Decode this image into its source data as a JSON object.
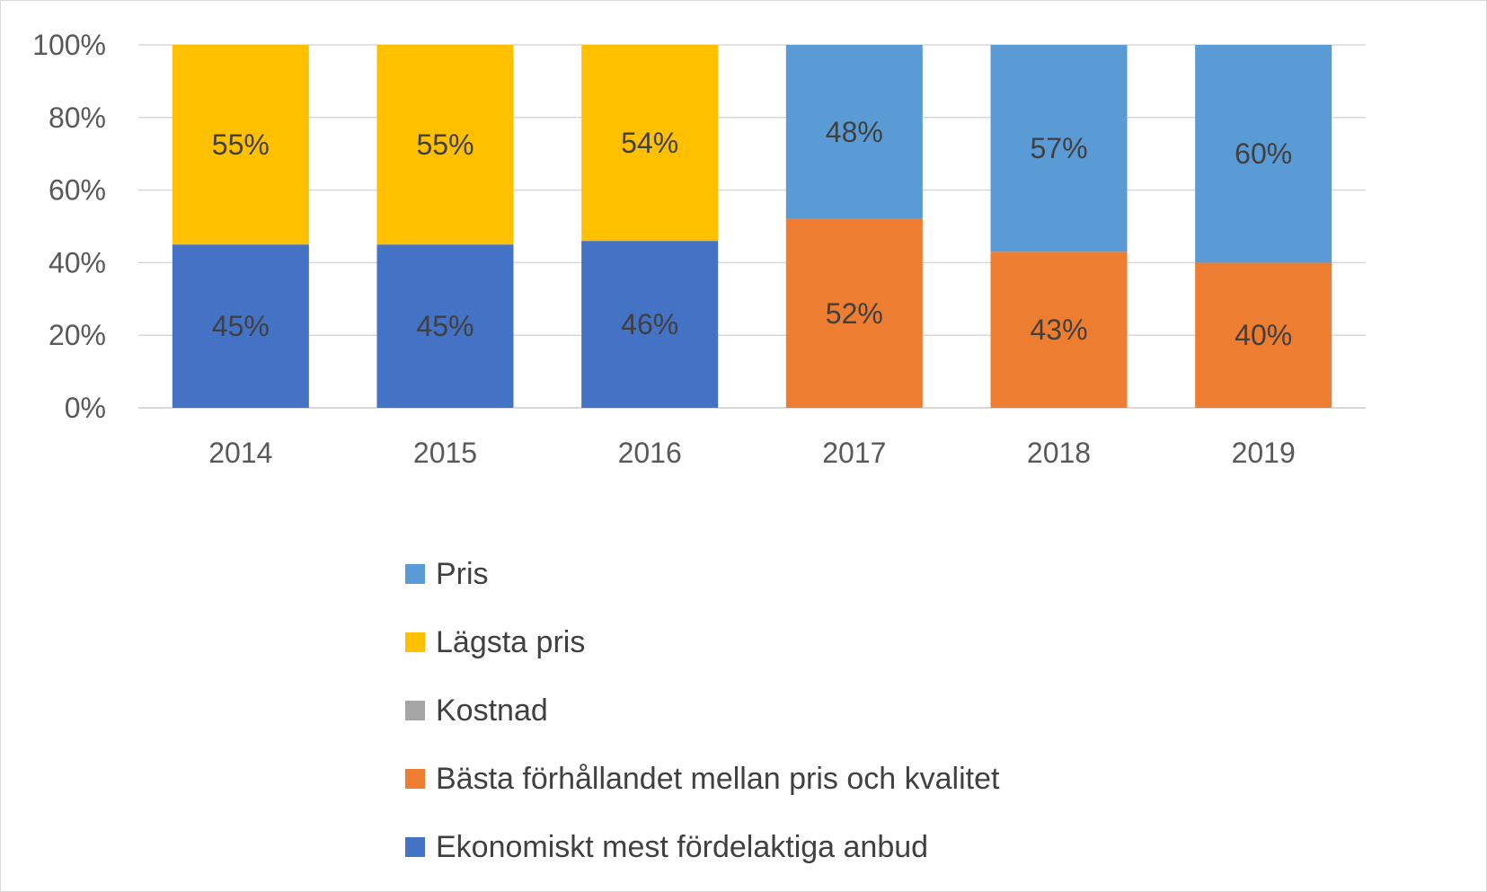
{
  "chart_data": {
    "type": "bar",
    "stacked": true,
    "normalized": true,
    "categories": [
      "2014",
      "2015",
      "2016",
      "2017",
      "2018",
      "2019"
    ],
    "ylim": [
      0,
      100
    ],
    "yticks": [
      "0%",
      "20%",
      "40%",
      "60%",
      "80%",
      "100%"
    ],
    "grid": true,
    "legend_position": "bottom",
    "series": [
      {
        "name": "Ekonomiskt mest fördelaktiga anbud",
        "color": "#4472C4",
        "values": [
          45,
          45,
          46,
          0,
          0,
          0
        ],
        "labels": [
          "45%",
          "45%",
          "46%",
          "",
          "",
          ""
        ]
      },
      {
        "name": "Bästa förhållandet mellan pris och kvalitet",
        "color": "#ED7D31",
        "values": [
          0,
          0,
          0,
          52,
          43,
          40
        ],
        "labels": [
          "",
          "",
          "",
          "52%",
          "43%",
          "40%"
        ]
      },
      {
        "name": "Kostnad",
        "color": "#A5A5A5",
        "values": [
          0,
          0,
          0,
          0,
          0,
          0
        ],
        "labels": [
          "",
          "",
          "",
          "",
          "",
          ""
        ]
      },
      {
        "name": "Lägsta pris",
        "color": "#FFC000",
        "values": [
          55,
          55,
          54,
          0,
          0,
          0
        ],
        "labels": [
          "55%",
          "55%",
          "54%",
          "",
          "",
          ""
        ]
      },
      {
        "name": "Pris",
        "color": "#5B9BD5",
        "values": [
          0,
          0,
          0,
          48,
          57,
          60
        ],
        "labels": [
          "",
          "",
          "",
          "48%",
          "57%",
          "60%"
        ]
      }
    ],
    "legend_order": [
      "Pris",
      "Lägsta pris",
      "Kostnad",
      "Bästa förhållandet mellan pris och kvalitet",
      "Ekonomiskt mest fördelaktiga anbud"
    ]
  }
}
